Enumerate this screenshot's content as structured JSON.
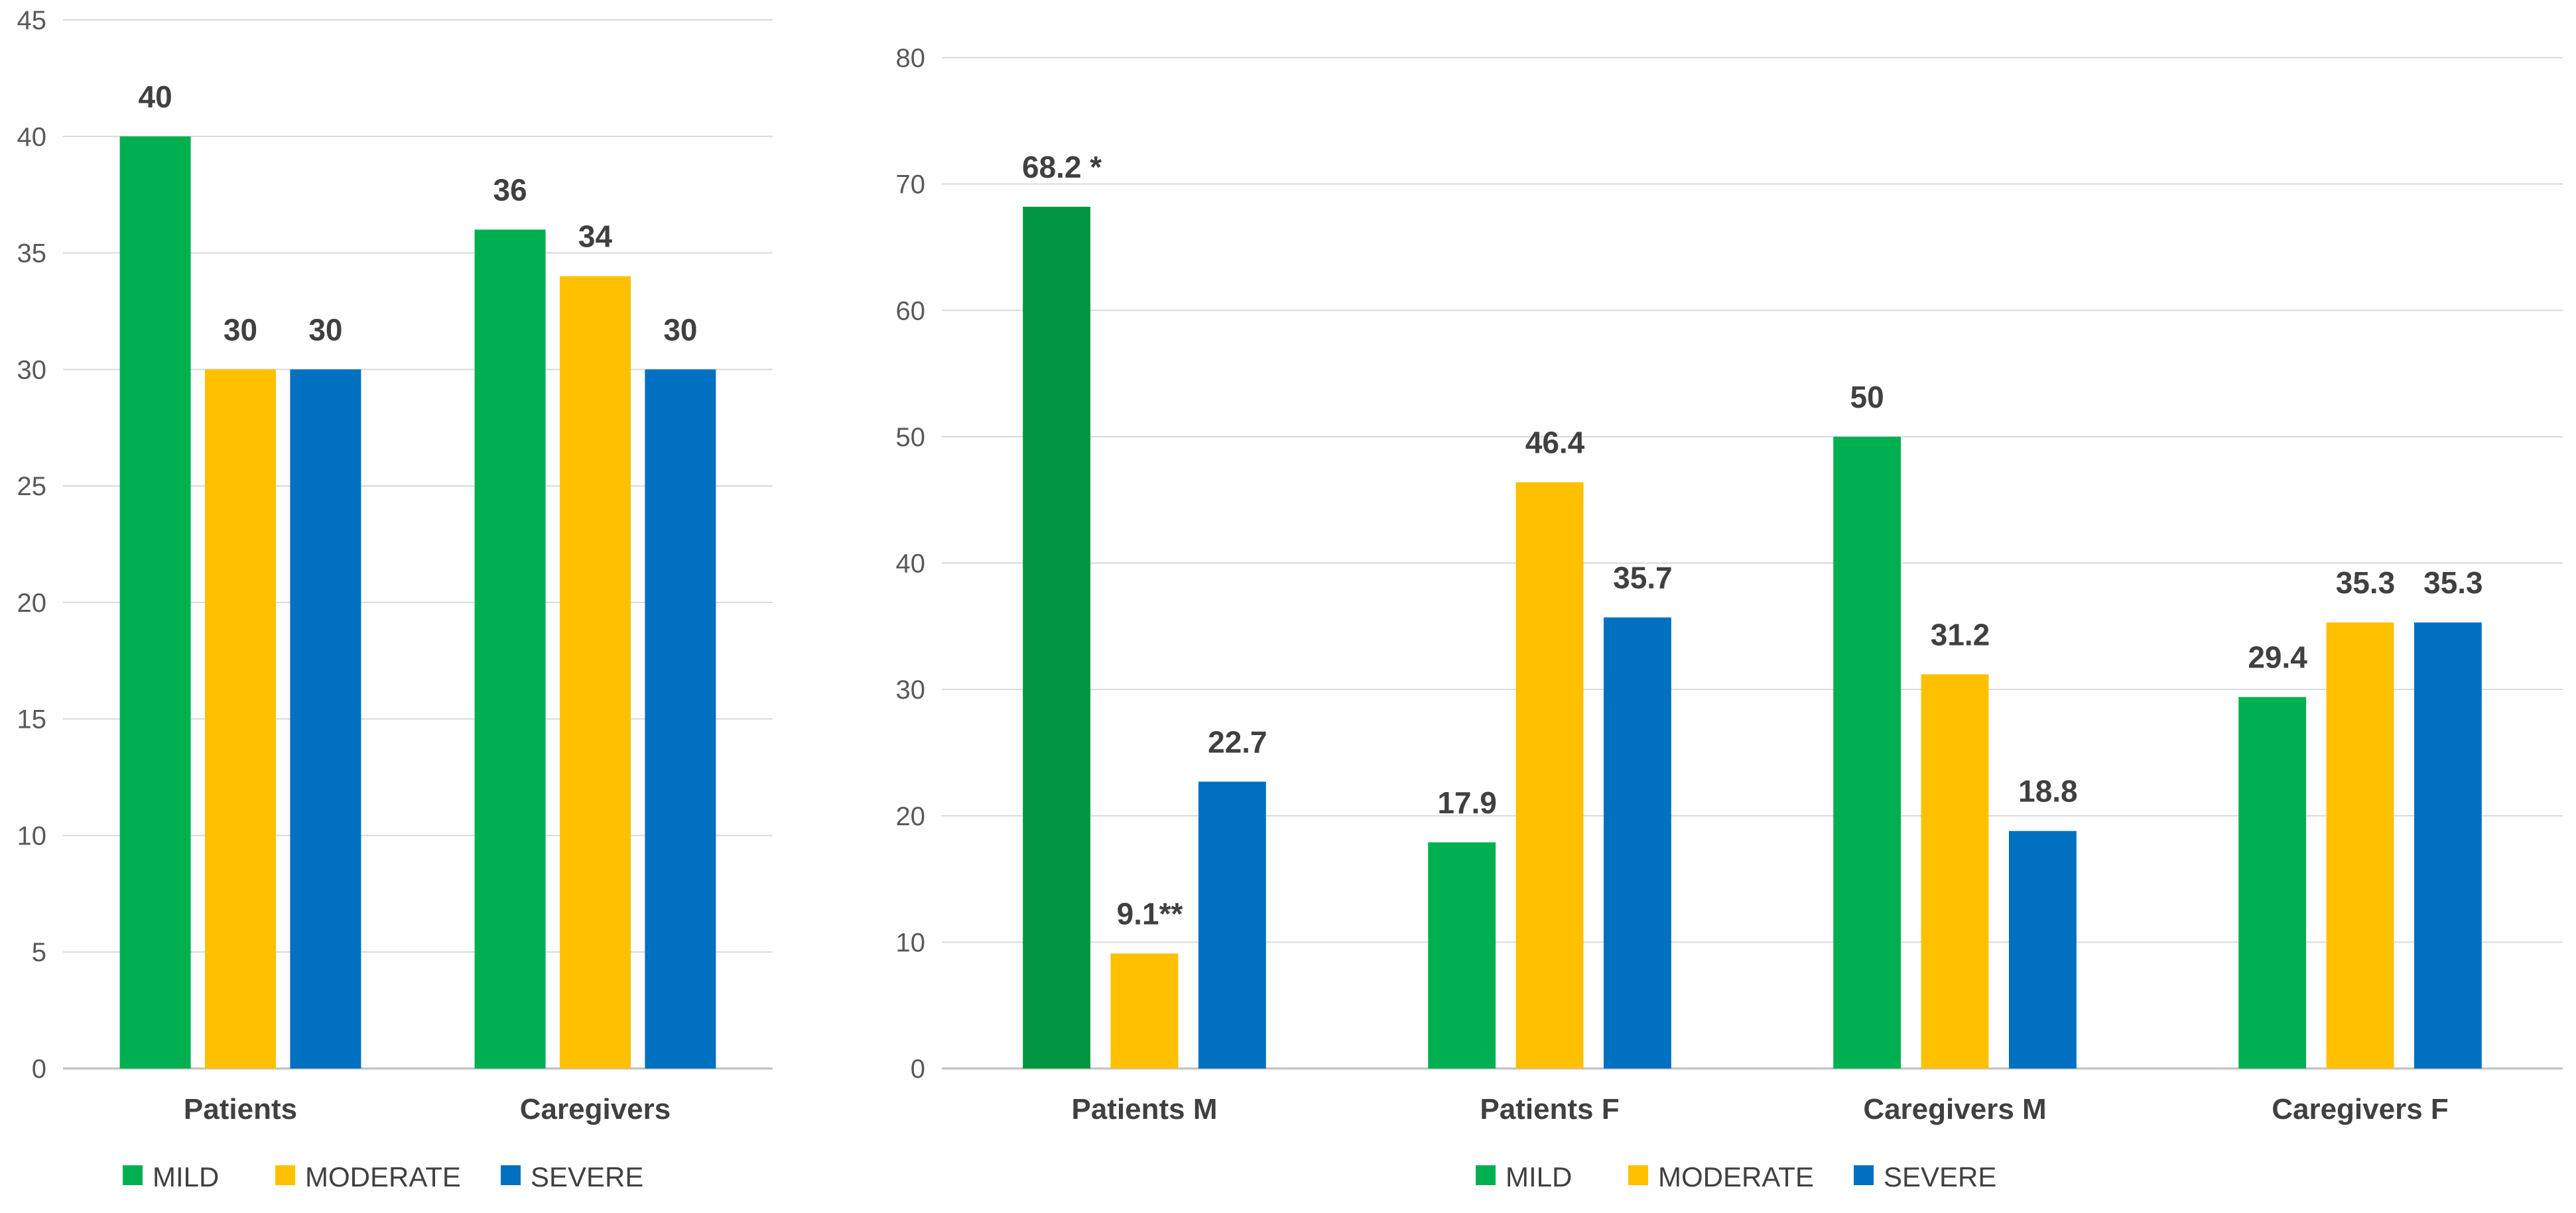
{
  "chart_data": [
    {
      "type": "bar",
      "title": "",
      "xlabel": "",
      "ylabel": "",
      "ylim": [
        0,
        45
      ],
      "yticks": [
        0,
        5,
        10,
        15,
        20,
        25,
        30,
        35,
        40,
        45
      ],
      "categories": [
        "Patients",
        "Caregivers"
      ],
      "series": [
        {
          "name": "MILD",
          "color": "#00B050",
          "values": [
            40,
            36
          ],
          "labels": [
            "40",
            "36"
          ]
        },
        {
          "name": "MODERATE",
          "color": "#FFC000",
          "values": [
            30,
            34
          ],
          "labels": [
            "30",
            "34"
          ]
        },
        {
          "name": "SEVERE",
          "color": "#0070C0",
          "values": [
            30,
            30
          ],
          "labels": [
            "30",
            "30"
          ]
        }
      ],
      "grid": true,
      "legend": "bottom"
    },
    {
      "type": "bar",
      "title": "",
      "xlabel": "",
      "ylabel": "",
      "ylim": [
        0,
        80
      ],
      "yticks": [
        0,
        10,
        20,
        30,
        40,
        50,
        60,
        70,
        80
      ],
      "categories": [
        "Patients M",
        "Patients  F",
        "Caregivers M",
        "Caregivers F"
      ],
      "series": [
        {
          "name": "MILD",
          "color": "#00B050",
          "values": [
            68.2,
            17.9,
            50,
            29.4
          ],
          "labels": [
            "68.2 *",
            "17.9",
            "50",
            "29.4"
          ],
          "highlight_color": "#00963F",
          "highlight_index": 0
        },
        {
          "name": "MODERATE",
          "color": "#FFC000",
          "values": [
            9.1,
            46.4,
            31.2,
            35.3
          ],
          "labels": [
            "9.1**",
            "46.4",
            "31.2",
            "35.3"
          ]
        },
        {
          "name": "SEVERE",
          "color": "#0070C0",
          "values": [
            22.7,
            35.7,
            18.8,
            35.3
          ],
          "labels": [
            "22.7",
            "35.7",
            "18.8",
            "35.3"
          ]
        }
      ],
      "grid": true,
      "legend": "bottom"
    }
  ]
}
